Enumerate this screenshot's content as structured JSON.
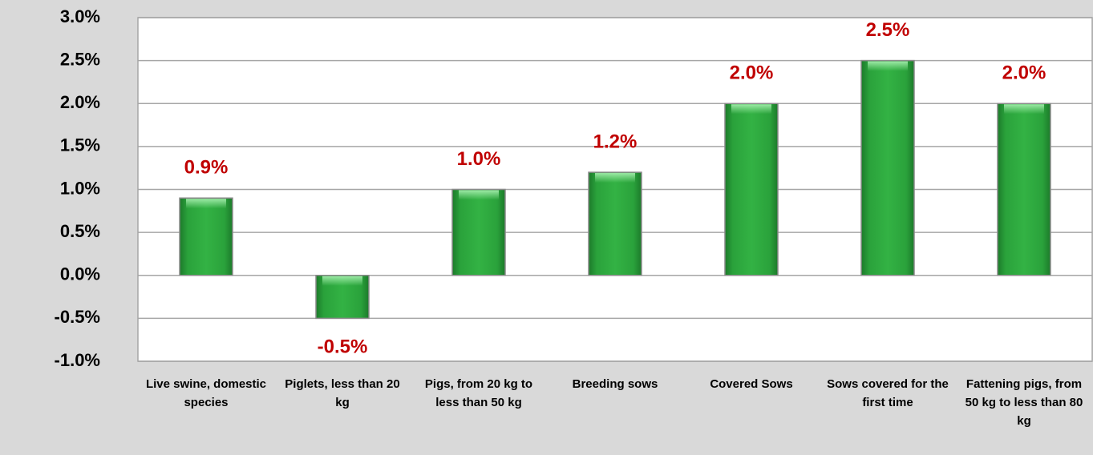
{
  "chart_data": {
    "type": "bar",
    "categories": [
      "Live swine, domestic species",
      "Piglets, less than 20 kg",
      "Pigs, from 20 kg to less than 50 kg",
      "Breeding sows",
      "Covered Sows",
      "Sows covered for the first time",
      "Fattening pigs, from 50 kg to less than 80 kg"
    ],
    "values": [
      0.9,
      -0.5,
      1.0,
      1.2,
      2.0,
      2.5,
      2.0
    ],
    "value_labels": [
      "0.9%",
      "-0.5%",
      "1.0%",
      "1.2%",
      "2.0%",
      "2.5%",
      "2.0%"
    ],
    "color": "#2ca33c",
    "ylim": [
      -1.0,
      3.0
    ],
    "yticks": [
      {
        "value": -1.0,
        "label": "-1.0%"
      },
      {
        "value": -0.5,
        "label": "-0.5%"
      },
      {
        "value": 0.0,
        "label": "0.0%"
      },
      {
        "value": 0.5,
        "label": "0.5%"
      },
      {
        "value": 1.0,
        "label": "1.0%"
      },
      {
        "value": 1.5,
        "label": "1.5%"
      },
      {
        "value": 2.0,
        "label": "2.0%"
      },
      {
        "value": 2.5,
        "label": "2.5%"
      },
      {
        "value": 3.0,
        "label": "3.0%"
      }
    ],
    "grid": true
  }
}
